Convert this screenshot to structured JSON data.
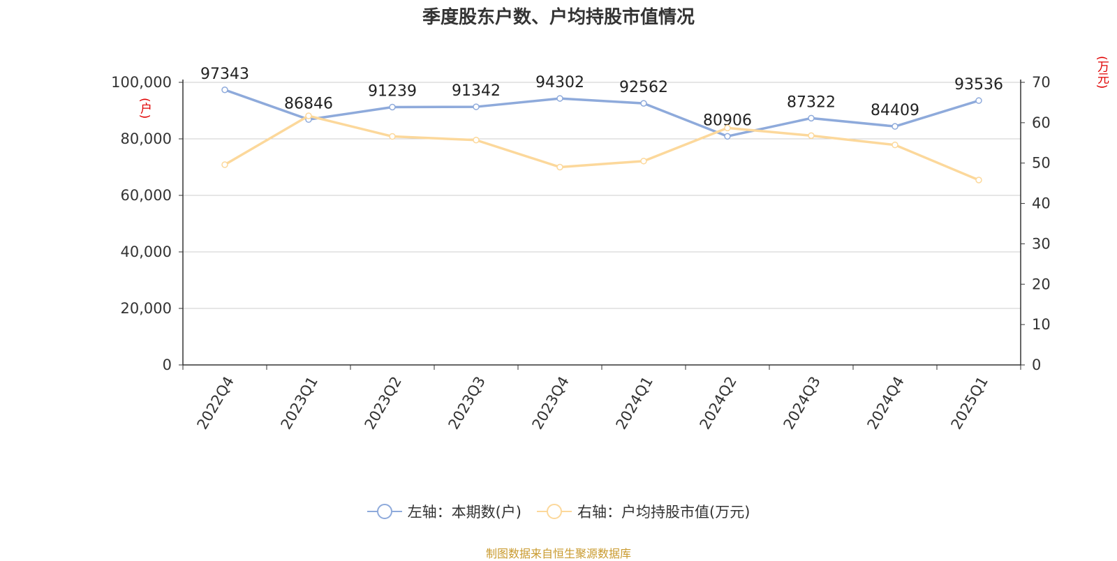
{
  "chart_data": {
    "type": "line",
    "title": "季度股东户数、户均持股市值情况",
    "categories": [
      "2022Q4",
      "2023Q1",
      "2023Q2",
      "2023Q3",
      "2023Q4",
      "2024Q1",
      "2024Q2",
      "2024Q3",
      "2024Q4",
      "2025Q1"
    ],
    "series": [
      {
        "name": "左轴：本期数(户)",
        "axis": "left",
        "color": "#8eaadb",
        "values": [
          97343,
          86846,
          91239,
          91342,
          94302,
          92562,
          80906,
          87322,
          84409,
          93536
        ],
        "labels": [
          "97343",
          "86846",
          "91239",
          "91342",
          "94302",
          "92562",
          "80906",
          "87322",
          "84409",
          "93536"
        ]
      },
      {
        "name": "右轴：户均持股市值(万元)",
        "axis": "right",
        "color": "#fcd89b",
        "values": [
          49.6,
          61.7,
          56.6,
          55.7,
          49.0,
          50.5,
          58.7,
          56.8,
          54.5,
          45.8
        ]
      }
    ],
    "y_left": {
      "unit": "(户)",
      "ylim": [
        0,
        100000
      ],
      "ticks": [
        "0",
        "20,000",
        "40,000",
        "60,000",
        "80,000",
        "100,000"
      ],
      "tick_values": [
        0,
        20000,
        40000,
        60000,
        80000,
        100000
      ]
    },
    "y_right": {
      "unit": "(万元)",
      "ylim": [
        0,
        70
      ],
      "ticks": [
        "0",
        "10",
        "20",
        "30",
        "40",
        "50",
        "60",
        "70"
      ],
      "tick_values": [
        0,
        10,
        20,
        30,
        40,
        50,
        60,
        70
      ]
    },
    "grid": true,
    "legend_position": "bottom"
  },
  "legend": [
    {
      "label": "左轴：本期数(户)",
      "color": "#8eaadb"
    },
    {
      "label": "右轴：户均持股市值(万元)",
      "color": "#fcd89b"
    }
  ],
  "source": "制图数据来自恒生聚源数据库"
}
